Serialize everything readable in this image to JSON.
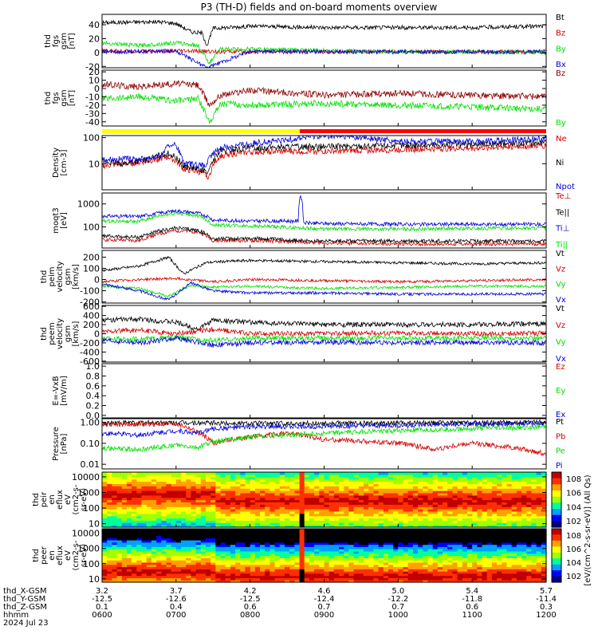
{
  "chart_data": {
    "type": "line",
    "title": "P3 (TH-D) fields and on-board moments overview",
    "time_axis": {
      "ticks": [
        "0600",
        "0700",
        "0800",
        "0900",
        "1000",
        "1100",
        "1200"
      ],
      "range_hours": [
        6.0,
        12.0
      ],
      "row_labels": [
        "thd_X-GSM",
        "thd_Y-GSM",
        "thd_Z-GSM",
        "hhmm",
        "2024 Jul 23"
      ],
      "x_gsm": [
        "3.2",
        "3.7",
        "4.2",
        "4.6",
        "5.0",
        "5.4",
        "5.7"
      ],
      "y_gsm": [
        "-12.5",
        "-12.6",
        "-12.5",
        "-12.4",
        "-12.2",
        "-11.8",
        "-11.4"
      ],
      "z_gsm": [
        "0.1",
        "0.4",
        "0.6",
        "0.7",
        "0.7",
        "0.6",
        "0.3"
      ]
    },
    "panels": [
      {
        "id": "fgs-btotal",
        "ylabel": "thd\nfgs\ngsm\n[nT]",
        "ylim": [
          -22,
          55
        ],
        "yticks": [
          "40",
          "20",
          "0",
          "-20"
        ],
        "ytick_values": [
          40,
          20,
          0,
          -20
        ],
        "series": [
          {
            "name": "Bt",
            "color": "#000000",
            "x": [
              6.0,
              6.5,
              6.8,
              7.0,
              7.2,
              7.35,
              7.42,
              7.5,
              8.0,
              8.5,
              9.0,
              9.5,
              10.0,
              11.0,
              12.0
            ],
            "y": [
              43,
              44,
              44,
              42,
              30,
              28,
              10,
              35,
              38,
              37,
              36,
              36,
              36,
              36,
              38
            ]
          },
          {
            "name": "Bz",
            "color": "#d40000",
            "x": [
              6.0,
              7.0,
              8.0,
              9.0,
              10.0,
              11.0,
              12.0
            ],
            "y": [
              2,
              2,
              1,
              1,
              1,
              1,
              1
            ]
          },
          {
            "name": "By",
            "color": "#00e000",
            "x": [
              6.0,
              6.5,
              7.0,
              7.3,
              7.45,
              7.6,
              8.0,
              9.0,
              10.0,
              11.0,
              12.0
            ],
            "y": [
              14,
              10,
              14,
              10,
              -15,
              5,
              5,
              3,
              1,
              1,
              0
            ]
          },
          {
            "name": "Bx",
            "color": "#0000dd",
            "x": [
              6.0,
              7.0,
              7.42,
              8.0,
              9.0,
              10.0,
              11.0,
              12.0
            ],
            "y": [
              1,
              2,
              -22,
              2,
              1,
              1,
              1,
              1
            ]
          }
        ]
      },
      {
        "id": "fgs-components",
        "ylabel": "thd\nfgs\ngsm\n[nT]",
        "ylim": [
          -45,
          22
        ],
        "yticks": [
          "20",
          "10",
          "0",
          "-10",
          "-20",
          "-30",
          "-40"
        ],
        "ytick_values": [
          20,
          10,
          0,
          -10,
          -20,
          -30,
          -40
        ],
        "series": [
          {
            "name": "Bz",
            "color": "#8b0000",
            "x": [
              6.0,
              6.5,
              7.0,
              7.3,
              7.45,
              7.6,
              8.0,
              8.5,
              9.0,
              10.0,
              11.0,
              12.0
            ],
            "y": [
              5,
              2,
              6,
              4,
              -20,
              -8,
              -2,
              -5,
              -8,
              -6,
              -8,
              -10
            ]
          },
          {
            "name": "By",
            "color": "#00e000",
            "x": [
              6.0,
              6.5,
              7.0,
              7.3,
              7.45,
              7.6,
              8.0,
              9.0,
              10.0,
              11.0,
              12.0
            ],
            "y": [
              -12,
              -10,
              -15,
              -12,
              -40,
              -18,
              -20,
              -18,
              -20,
              -22,
              -25
            ]
          }
        ]
      },
      {
        "id": "density",
        "ylabel": "Density\n[cm-3]",
        "scale": "log",
        "ylim": [
          1,
          120
        ],
        "yticks": [
          "100",
          "10"
        ],
        "ytick_values": [
          100,
          10
        ],
        "quality_bar": [
          {
            "from": 6.0,
            "to": 8.67,
            "color": "#ffff00"
          },
          {
            "from": 8.67,
            "to": 12.0,
            "color": "#ff0000"
          }
        ],
        "series": [
          {
            "name": "Ne",
            "color": "#d40000",
            "x": [
              6.0,
              6.3,
              6.6,
              6.9,
              7.1,
              7.3,
              7.45,
              7.6,
              8.0,
              8.5,
              9.0,
              10.0,
              11.0,
              12.0
            ],
            "y": [
              8,
              10,
              12,
              18,
              6,
              5,
              3,
              20,
              28,
              30,
              30,
              35,
              40,
              50
            ]
          },
          {
            "name": "Ni",
            "color": "#000000",
            "x": [
              6.0,
              6.3,
              6.6,
              6.9,
              7.1,
              7.3,
              7.45,
              7.6,
              8.0,
              8.5,
              9.0,
              10.0,
              11.0,
              12.0
            ],
            "y": [
              12,
              10,
              14,
              25,
              8,
              6,
              5,
              30,
              40,
              45,
              45,
              50,
              55,
              65
            ]
          },
          {
            "name": "Npot",
            "color": "#0000dd",
            "x": [
              6.0,
              6.5,
              6.8,
              6.95,
              7.1,
              7.4,
              7.6,
              8.0,
              8.5,
              8.9,
              9.5,
              10.0,
              11.0,
              12.0
            ],
            "y": [
              15,
              15,
              20,
              60,
              10,
              8,
              40,
              60,
              80,
              120,
              100,
              70,
              70,
              90
            ]
          }
        ]
      },
      {
        "id": "temperature",
        "ylabel": "moqt3\n[eV]",
        "scale": "log",
        "ylim": [
          12,
          3000
        ],
        "yticks": [
          "1000",
          "100"
        ],
        "ytick_values": [
          1000,
          100
        ],
        "series": [
          {
            "name": "Te⊥",
            "color": "#d40000",
            "x": [
              6.0,
              6.5,
              7.0,
              7.3,
              7.5,
              8.0,
              8.7,
              9.0,
              10.0,
              11.0,
              12.0
            ],
            "y": [
              28,
              25,
              70,
              60,
              25,
              25,
              22,
              20,
              18,
              18,
              18
            ]
          },
          {
            "name": "Te||",
            "color": "#000000",
            "x": [
              6.0,
              6.5,
              7.0,
              7.3,
              7.5,
              8.0,
              8.7,
              9.0,
              10.0,
              11.0,
              12.0
            ],
            "y": [
              40,
              35,
              90,
              70,
              30,
              32,
              25,
              25,
              24,
              24,
              24
            ]
          },
          {
            "name": "Ti⊥",
            "color": "#0000dd",
            "x": [
              6.0,
              6.5,
              7.0,
              7.3,
              7.5,
              8.0,
              8.65,
              8.68,
              8.72,
              9.0,
              10.0,
              11.0,
              12.0
            ],
            "y": [
              300,
              280,
              500,
              400,
              200,
              180,
              180,
              2500,
              150,
              140,
              130,
              130,
              130
            ]
          },
          {
            "name": "Ti||",
            "color": "#00e000",
            "x": [
              6.0,
              6.5,
              7.0,
              7.3,
              7.5,
              8.0,
              8.7,
              9.0,
              10.0,
              11.0,
              12.0
            ],
            "y": [
              180,
              170,
              400,
              300,
              120,
              110,
              90,
              80,
              80,
              85,
              90
            ]
          }
        ]
      },
      {
        "id": "ion-velocity",
        "ylabel": "thd\npeim\nvelocity\ngsm\n[km/s]",
        "ylim": [
          -210,
          260
        ],
        "yticks": [
          "200",
          "100",
          "0",
          "-100",
          "-200"
        ],
        "ytick_values": [
          200,
          100,
          0,
          -100,
          -200
        ],
        "series": [
          {
            "name": "Vt",
            "color": "#000000",
            "x": [
              6.0,
              6.5,
              6.9,
              7.1,
              7.4,
              7.6,
              8.0,
              9.0,
              10.0,
              11.0,
              12.0
            ],
            "y": [
              80,
              120,
              200,
              50,
              150,
              160,
              170,
              160,
              150,
              140,
              150
            ]
          },
          {
            "name": "Vz",
            "color": "#d40000",
            "x": [
              6.0,
              6.5,
              7.0,
              7.5,
              8.0,
              9.0,
              10.0,
              11.0,
              12.0
            ],
            "y": [
              -20,
              0,
              10,
              -20,
              0,
              -10,
              -20,
              -10,
              0
            ]
          },
          {
            "name": "Vy",
            "color": "#00e000",
            "x": [
              6.0,
              6.5,
              6.9,
              7.2,
              7.5,
              8.0,
              9.0,
              10.0,
              11.0,
              12.0
            ],
            "y": [
              -60,
              -80,
              -150,
              -50,
              -70,
              -60,
              -80,
              -70,
              -60,
              -60
            ]
          },
          {
            "name": "Vx",
            "color": "#0000dd",
            "x": [
              6.0,
              6.5,
              6.9,
              7.2,
              7.5,
              8.0,
              9.0,
              10.0,
              11.0,
              12.0
            ],
            "y": [
              -40,
              -100,
              -180,
              -30,
              -100,
              -120,
              -120,
              -130,
              -130,
              -130
            ]
          }
        ]
      },
      {
        "id": "electron-velocity",
        "ylabel": "thd\npeem\nvelocity\ngsm\n[km/s]",
        "ylim": [
          -620,
          620
        ],
        "yticks": [
          "600",
          "400",
          "200",
          "0",
          "-200",
          "-400",
          "-600"
        ],
        "ytick_values": [
          600,
          400,
          200,
          0,
          -200,
          -400,
          -600
        ],
        "series": [
          {
            "name": "Vt",
            "color": "#000000",
            "x": [
              6.0,
              6.5,
              7.0,
              7.3,
              7.5,
              8.0,
              9.0,
              10.0,
              11.0,
              12.0
            ],
            "y": [
              300,
              320,
              250,
              100,
              300,
              250,
              200,
              200,
              200,
              220
            ]
          },
          {
            "name": "Vz",
            "color": "#d40000",
            "x": [
              6.0,
              6.5,
              7.0,
              7.5,
              8.0,
              9.0,
              10.0,
              11.0,
              12.0
            ],
            "y": [
              50,
              80,
              0,
              100,
              0,
              0,
              20,
              0,
              10
            ]
          },
          {
            "name": "Vy",
            "color": "#00e000",
            "x": [
              6.0,
              6.5,
              7.0,
              7.5,
              8.0,
              9.0,
              10.0,
              11.0,
              12.0
            ],
            "y": [
              -100,
              -120,
              -80,
              -150,
              -100,
              -90,
              -100,
              -90,
              -100
            ]
          },
          {
            "name": "Vx",
            "color": "#0000dd",
            "x": [
              6.0,
              6.5,
              7.0,
              7.5,
              8.0,
              9.0,
              10.0,
              11.0,
              12.0
            ],
            "y": [
              -150,
              -200,
              -100,
              -250,
              -200,
              -180,
              -200,
              -190,
              -200
            ]
          }
        ]
      },
      {
        "id": "e-field",
        "ylabel": "E=-VxB\n[mV/m]",
        "ylim": [
          -0.05,
          1.05
        ],
        "yticks": [
          "1.0",
          "0.8",
          "0.6",
          "0.4",
          "0.2",
          "0.0"
        ],
        "ytick_values": [
          1.0,
          0.8,
          0.6,
          0.4,
          0.2,
          0.0
        ],
        "series": [
          {
            "name": "Ez",
            "color": "#d40000",
            "x": [],
            "y": []
          },
          {
            "name": "Ey",
            "color": "#00e000",
            "x": [],
            "y": []
          },
          {
            "name": "Ex",
            "color": "#0000dd",
            "x": [],
            "y": []
          }
        ]
      },
      {
        "id": "pressure",
        "ylabel": "Pressure\n[nPa]",
        "scale": "log",
        "ylim": [
          0.006,
          1.5
        ],
        "yticks": [
          "1.00",
          "0.10",
          "0.01"
        ],
        "ytick_values": [
          1.0,
          0.1,
          0.01
        ],
        "series": [
          {
            "name": "Pt",
            "color": "#000000",
            "x": [
              6.0,
              7.0,
              8.0,
              9.0,
              10.0,
              11.0,
              12.0
            ],
            "y": [
              0.95,
              0.95,
              0.9,
              0.9,
              0.92,
              0.95,
              1.0
            ]
          },
          {
            "name": "Pb",
            "color": "#d40000",
            "x": [
              6.0,
              6.5,
              7.0,
              7.3,
              7.5,
              8.0,
              8.5,
              9.0,
              10.0,
              10.5,
              11.0,
              12.0
            ],
            "y": [
              0.85,
              0.8,
              0.85,
              0.3,
              0.1,
              0.2,
              0.3,
              0.15,
              0.1,
              0.05,
              0.1,
              0.03
            ]
          },
          {
            "name": "Pe",
            "color": "#00e000",
            "x": [
              6.0,
              6.5,
              7.0,
              7.3,
              7.5,
              8.0,
              9.0,
              10.0,
              11.0,
              12.0
            ],
            "y": [
              0.06,
              0.05,
              0.08,
              0.06,
              0.12,
              0.2,
              0.3,
              0.4,
              0.5,
              0.6
            ]
          },
          {
            "name": "Pi",
            "color": "#0000dd",
            "x": [
              6.0,
              6.5,
              7.0,
              7.3,
              7.5,
              8.0,
              9.0,
              10.0,
              11.0,
              12.0
            ],
            "y": [
              0.3,
              0.25,
              0.4,
              0.3,
              0.5,
              0.6,
              0.65,
              0.7,
              0.8,
              0.9
            ]
          }
        ]
      },
      {
        "id": "ion-spectrogram",
        "type": "heatmap",
        "ylabel": "thd\npeir\nen\neflux\neV\n(cm2-s-\nsr-eV)",
        "scale": "log",
        "ylim": [
          6,
          20000
        ],
        "yticks": [
          "10000",
          "1000",
          "100",
          "10"
        ],
        "ytick_values": [
          10000,
          1000,
          100,
          10
        ]
      },
      {
        "id": "electron-spectrogram",
        "type": "heatmap",
        "ylabel": "thd\npeer\nen\neflux\neV\n(cm2-s-\nsr-eV)",
        "scale": "log",
        "ylim": [
          6,
          20000
        ],
        "yticks": [
          "10000",
          "1000",
          "100",
          "10"
        ],
        "ytick_values": [
          10000,
          1000,
          100,
          10
        ]
      }
    ],
    "colorbar": {
      "label": "[eV/(cm^2-s-sr-eV)] (All Qs)",
      "ticks": [
        "10^8",
        "10^6",
        "10^4",
        "10^2"
      ],
      "ticks_lower": [
        "10^8",
        "10^6",
        "10^4",
        "10^2"
      ]
    }
  }
}
